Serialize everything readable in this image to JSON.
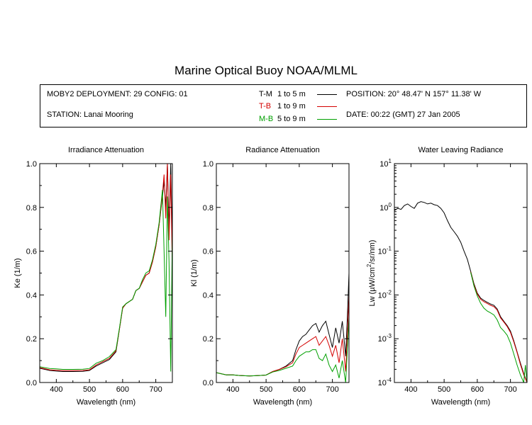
{
  "title": "Marine Optical Buoy NOAA/MLML",
  "info": {
    "deployment": "MOBY2 DEPLOYMENT: 29 CONFIG: 01",
    "station": "STATION: Lanai Mooring",
    "position": "POSITION: 20° 48.47' N   157° 11.38' W",
    "date": "DATE: 00:22 (GMT) 27 Jan 2005"
  },
  "legend": [
    {
      "code": "T-M",
      "range": "1 to 5  m",
      "color": "#000000"
    },
    {
      "code": "T-B",
      "range": "1 to 9  m",
      "color": "#d40000"
    },
    {
      "code": "M-B",
      "range": "5 to 9  m",
      "color": "#00a000"
    }
  ],
  "chart_data": [
    {
      "type": "line",
      "title": "Irradiance Attenuation",
      "xlabel": "Wavelength (nm)",
      "ylabel": "Ke  (1/m)",
      "xlim": [
        350,
        750
      ],
      "ylim": [
        0,
        1.0
      ],
      "x_ticks": [
        "400",
        "500",
        "600",
        "700"
      ],
      "y_ticks": [
        "0.0",
        "0.2",
        "0.4",
        "0.6",
        "0.8",
        "1.0"
      ],
      "series": [
        {
          "name": "T-M",
          "color": "#000000",
          "x": [
            350,
            380,
            400,
            420,
            450,
            480,
            500,
            520,
            540,
            560,
            580,
            590,
            600,
            610,
            620,
            630,
            640,
            650,
            660,
            670,
            680,
            690,
            700,
            710,
            720,
            725,
            730,
            735,
            740,
            745,
            750
          ],
          "y": [
            0.065,
            0.055,
            0.052,
            0.05,
            0.05,
            0.051,
            0.055,
            0.075,
            0.09,
            0.105,
            0.14,
            0.24,
            0.34,
            0.36,
            0.37,
            0.38,
            0.42,
            0.43,
            0.46,
            0.49,
            0.5,
            0.55,
            0.62,
            0.72,
            0.85,
            0.92,
            0.8,
            1.0,
            0.7,
            1.0,
            0.6
          ]
        },
        {
          "name": "T-B",
          "color": "#d40000",
          "x": [
            350,
            380,
            400,
            420,
            450,
            480,
            500,
            520,
            540,
            560,
            580,
            590,
            600,
            610,
            620,
            630,
            640,
            650,
            660,
            670,
            680,
            690,
            700,
            710,
            720,
            725,
            730,
            735,
            740,
            745,
            750
          ],
          "y": [
            0.068,
            0.058,
            0.056,
            0.054,
            0.054,
            0.055,
            0.058,
            0.08,
            0.095,
            0.11,
            0.145,
            0.24,
            0.34,
            0.36,
            0.37,
            0.38,
            0.42,
            0.43,
            0.46,
            0.49,
            0.5,
            0.55,
            0.62,
            0.72,
            0.86,
            0.95,
            0.75,
            1.0,
            0.65,
            0.95,
            0.5
          ]
        },
        {
          "name": "M-B",
          "color": "#00a000",
          "x": [
            350,
            380,
            400,
            420,
            450,
            480,
            500,
            520,
            540,
            560,
            580,
            590,
            600,
            610,
            620,
            630,
            640,
            650,
            660,
            670,
            680,
            690,
            700,
            710,
            720,
            725,
            730,
            735,
            740,
            745,
            750
          ],
          "y": [
            0.072,
            0.064,
            0.062,
            0.06,
            0.06,
            0.061,
            0.064,
            0.088,
            0.1,
            0.118,
            0.15,
            0.245,
            0.345,
            0.36,
            0.37,
            0.38,
            0.42,
            0.43,
            0.47,
            0.5,
            0.51,
            0.56,
            0.63,
            0.73,
            0.88,
            0.6,
            0.3,
            0.85,
            0.55,
            0.05,
            0.7
          ]
        }
      ]
    },
    {
      "type": "line",
      "title": "Radiance Attenuation",
      "xlabel": "Wavelength (nm)",
      "ylabel": "Kl  (1/m)",
      "xlim": [
        350,
        750
      ],
      "ylim": [
        0,
        1.0
      ],
      "x_ticks": [
        "400",
        "500",
        "600",
        "700"
      ],
      "y_ticks": [
        "0.0",
        "0.2",
        "0.4",
        "0.6",
        "0.8",
        "1.0"
      ],
      "series": [
        {
          "name": "T-M",
          "color": "#000000",
          "x": [
            350,
            380,
            400,
            420,
            450,
            480,
            500,
            520,
            540,
            560,
            580,
            590,
            600,
            610,
            620,
            630,
            640,
            650,
            660,
            670,
            680,
            690,
            700,
            710,
            720,
            730,
            740,
            745,
            750
          ],
          "y": [
            0.045,
            0.035,
            0.035,
            0.032,
            0.03,
            0.032,
            0.034,
            0.05,
            0.06,
            0.075,
            0.1,
            0.15,
            0.19,
            0.21,
            0.22,
            0.24,
            0.26,
            0.27,
            0.23,
            0.26,
            0.28,
            0.22,
            0.16,
            0.25,
            0.18,
            0.28,
            0.12,
            0.3,
            0.5
          ]
        },
        {
          "name": "T-B",
          "color": "#d40000",
          "x": [
            350,
            380,
            400,
            420,
            450,
            480,
            500,
            520,
            540,
            560,
            580,
            590,
            600,
            610,
            620,
            630,
            640,
            650,
            660,
            670,
            680,
            690,
            700,
            710,
            720,
            730,
            740,
            745,
            750
          ],
          "y": [
            0.045,
            0.035,
            0.035,
            0.032,
            0.03,
            0.032,
            0.034,
            0.05,
            0.06,
            0.072,
            0.09,
            0.13,
            0.16,
            0.17,
            0.18,
            0.19,
            0.2,
            0.21,
            0.17,
            0.19,
            0.21,
            0.17,
            0.12,
            0.17,
            0.09,
            0.2,
            0.05,
            0.22,
            0.4
          ]
        },
        {
          "name": "M-B",
          "color": "#00a000",
          "x": [
            350,
            380,
            400,
            420,
            450,
            480,
            500,
            520,
            540,
            560,
            580,
            590,
            600,
            610,
            620,
            630,
            640,
            650,
            660,
            670,
            680,
            690,
            700,
            710,
            720,
            730,
            740,
            745,
            750
          ],
          "y": [
            0.045,
            0.035,
            0.035,
            0.032,
            0.03,
            0.032,
            0.034,
            0.048,
            0.055,
            0.065,
            0.075,
            0.1,
            0.12,
            0.13,
            0.14,
            0.14,
            0.15,
            0.15,
            0.11,
            0.1,
            0.13,
            0.08,
            0.05,
            0.08,
            0.02,
            0.1,
            0.0,
            0.15,
            0.3
          ]
        }
      ]
    },
    {
      "type": "line",
      "title": "Water Leaving Radiance",
      "xlabel": "Wavelength (nm)",
      "ylabel": "Lw  (µW/cm²/sr/nm)",
      "ylabel_main": "Lw  (µW/cm",
      "ylabel_sup": "2",
      "ylabel_tail": "/sr/nm)",
      "yscale": "log",
      "xlim": [
        350,
        750
      ],
      "ylim_exp": [
        -4,
        1
      ],
      "x_ticks": [
        "400",
        "500",
        "600",
        "700"
      ],
      "y_tick_base": "10",
      "y_tick_exps": [
        "-4",
        "-3",
        "-2",
        "-1",
        "0",
        "1"
      ],
      "series": [
        {
          "name": "T-M",
          "color": "#000000",
          "x": [
            350,
            360,
            370,
            380,
            390,
            400,
            410,
            420,
            430,
            440,
            450,
            460,
            470,
            480,
            490,
            500,
            510,
            520,
            530,
            540,
            550,
            560,
            570,
            580,
            590,
            600,
            610,
            620,
            630,
            640,
            650,
            660,
            670,
            680,
            690,
            700,
            710,
            720,
            730,
            740,
            750
          ],
          "y": [
            0.85,
            0.95,
            0.9,
            1.1,
            1.2,
            1.05,
            0.95,
            1.25,
            1.35,
            1.3,
            1.2,
            1.25,
            1.15,
            1.1,
            0.95,
            0.75,
            0.5,
            0.35,
            0.28,
            0.22,
            0.16,
            0.1,
            0.065,
            0.035,
            0.018,
            0.011,
            0.0085,
            0.0075,
            0.0068,
            0.0062,
            0.0058,
            0.0048,
            0.0032,
            0.0025,
            0.002,
            0.0015,
            0.0009,
            0.0005,
            0.00028,
            0.00016,
            0.0001
          ]
        },
        {
          "name": "T-B",
          "color": "#d40000",
          "x": [
            580,
            590,
            600,
            610,
            620,
            630,
            640,
            650,
            660,
            670,
            680,
            690,
            700,
            710,
            720,
            730,
            740,
            750
          ],
          "y": [
            0.034,
            0.017,
            0.0105,
            0.008,
            0.007,
            0.0064,
            0.0058,
            0.0054,
            0.0045,
            0.003,
            0.0024,
            0.0019,
            0.0014,
            0.00085,
            0.00048,
            0.00026,
            0.00015,
            0.0001
          ]
        },
        {
          "name": "M-B",
          "color": "#00a000",
          "x": [
            580,
            590,
            600,
            610,
            620,
            630,
            640,
            650,
            660,
            670,
            680,
            690,
            700,
            710,
            720,
            730,
            740,
            745,
            750
          ],
          "y": [
            0.033,
            0.016,
            0.0095,
            0.0065,
            0.005,
            0.0043,
            0.0039,
            0.0035,
            0.0027,
            0.0018,
            0.0015,
            0.0012,
            0.0008,
            0.00045,
            0.00025,
            0.00015,
            0.0001,
            0.00025,
            0.0001
          ]
        }
      ]
    }
  ]
}
